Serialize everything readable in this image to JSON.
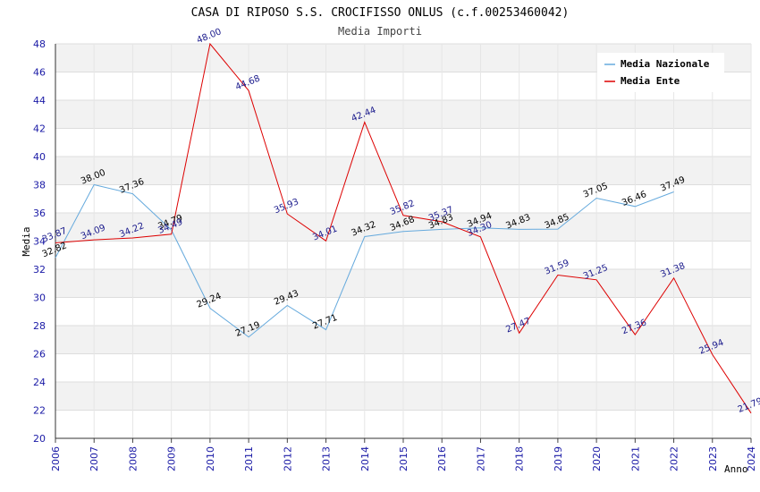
{
  "chart_data": {
    "type": "line",
    "title": "CASA DI RIPOSO S.S. CROCIFISSO ONLUS (c.f.00253460042)",
    "subtitle": "Media Importi",
    "xlabel": "Anno",
    "ylabel": "Media",
    "x": [
      "2006",
      "2007",
      "2008",
      "2009",
      "2010",
      "2011",
      "2012",
      "2013",
      "2014",
      "2015",
      "2016",
      "2017",
      "2018",
      "2019",
      "2020",
      "2021",
      "2022",
      "2023",
      "2024"
    ],
    "ylim": [
      20,
      48
    ],
    "yticks": [
      "20",
      "22",
      "24",
      "26",
      "28",
      "30",
      "32",
      "34",
      "36",
      "38",
      "40",
      "42",
      "44",
      "46",
      "48"
    ],
    "grid": true,
    "legend_position": "top-right",
    "series": [
      {
        "name": "Media Nazionale",
        "color": "#66aadd",
        "label_color": "#000000",
        "values": [
          32.82,
          38.0,
          37.36,
          34.79,
          29.24,
          27.19,
          29.43,
          27.71,
          34.32,
          34.68,
          34.83,
          34.94,
          34.83,
          34.85,
          37.05,
          36.46,
          37.49,
          null,
          null
        ],
        "labels": [
          "32.82",
          "38.00",
          "37.36",
          "34.79",
          "29.24",
          "27.19",
          "29.43",
          "27.71",
          "34.32",
          "34.68",
          "34.83",
          "34.94",
          "34.83",
          "34.85",
          "37.05",
          "36.46",
          "37.49",
          "",
          ""
        ]
      },
      {
        "name": "Media Ente",
        "color": "#dd0000",
        "label_color": "#1a1a8c",
        "values": [
          33.87,
          34.09,
          34.22,
          34.49,
          48.0,
          44.68,
          35.93,
          34.01,
          42.44,
          35.82,
          35.37,
          34.3,
          27.47,
          31.59,
          31.25,
          27.36,
          31.38,
          25.94,
          21.79
        ],
        "labels": [
          "33.87",
          "34.09",
          "34.22",
          "34.49",
          "48.00",
          "44.68",
          "35.93",
          "34.01",
          "42.44",
          "35.82",
          "35.37",
          "34.30",
          "27.47",
          "31.59",
          "31.25",
          "27.36",
          "31.38",
          "25.94",
          "21.79"
        ]
      }
    ]
  }
}
